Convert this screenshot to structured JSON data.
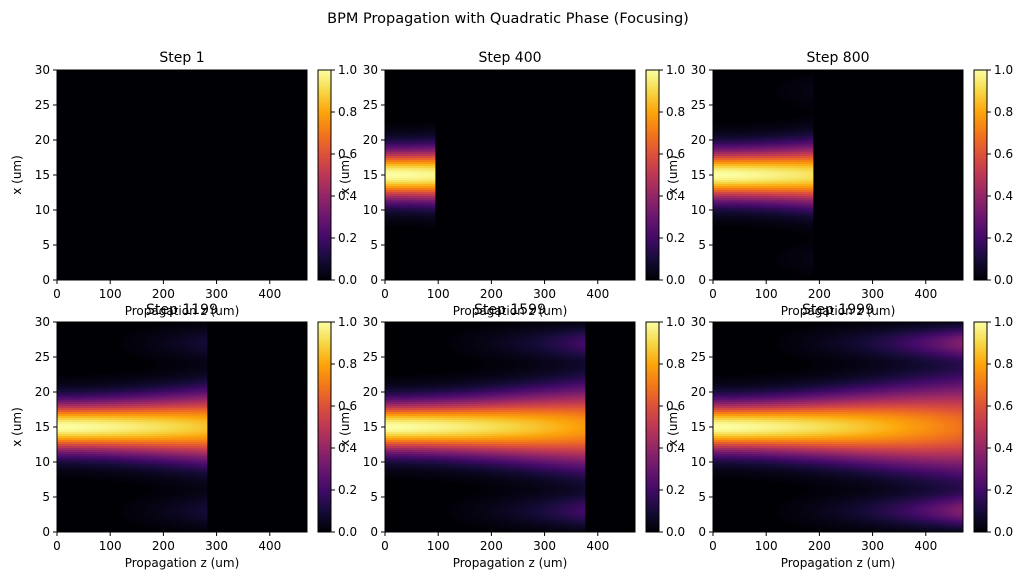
{
  "figure": {
    "title": "BPM Propagation with Quadratic Phase (Focusing)",
    "colormap": "inferno"
  },
  "chart_data": [
    {
      "type": "heatmap",
      "title": "Step 1",
      "xlabel": "Propagation z (um)",
      "ylabel": "x (um)",
      "xlim": [
        0,
        470
      ],
      "ylim": [
        0,
        30
      ],
      "xticks": [
        "0",
        "100",
        "200",
        "300",
        "400"
      ],
      "yticks": [
        "0",
        "5",
        "10",
        "15",
        "20",
        "25",
        "30"
      ],
      "colorbar": {
        "range": [
          0,
          1
        ],
        "ticks": [
          "0.0",
          "0.2",
          "0.4",
          "0.6",
          "0.8",
          "1.0"
        ]
      },
      "front_z": 0,
      "beam_center_x": 15
    },
    {
      "type": "heatmap",
      "title": "Step 400",
      "xlabel": "Propagation z (um)",
      "ylabel": "x (um)",
      "xlim": [
        0,
        470
      ],
      "ylim": [
        0,
        30
      ],
      "xticks": [
        "0",
        "100",
        "200",
        "300",
        "400"
      ],
      "yticks": [
        "0",
        "5",
        "10",
        "15",
        "20",
        "25",
        "30"
      ],
      "colorbar": {
        "range": [
          0,
          1
        ],
        "ticks": [
          "0.0",
          "0.2",
          "0.4",
          "0.6",
          "0.8",
          "1.0"
        ]
      },
      "front_z": 94,
      "beam_center_x": 15
    },
    {
      "type": "heatmap",
      "title": "Step 800",
      "xlabel": "Propagation z (um)",
      "ylabel": "x (um)",
      "xlim": [
        0,
        470
      ],
      "ylim": [
        0,
        30
      ],
      "xticks": [
        "0",
        "100",
        "200",
        "300",
        "400"
      ],
      "yticks": [
        "0",
        "5",
        "10",
        "15",
        "20",
        "25",
        "30"
      ],
      "colorbar": {
        "range": [
          0,
          1
        ],
        "ticks": [
          "0.0",
          "0.2",
          "0.4",
          "0.6",
          "0.8",
          "1.0"
        ]
      },
      "front_z": 188,
      "beam_center_x": 15
    },
    {
      "type": "heatmap",
      "title": "Step 1199",
      "xlabel": "Propagation z (um)",
      "ylabel": "x (um)",
      "xlim": [
        0,
        470
      ],
      "ylim": [
        0,
        30
      ],
      "xticks": [
        "0",
        "100",
        "200",
        "300",
        "400"
      ],
      "yticks": [
        "0",
        "5",
        "10",
        "15",
        "20",
        "25",
        "30"
      ],
      "colorbar": {
        "range": [
          0,
          1
        ],
        "ticks": [
          "0.0",
          "0.2",
          "0.4",
          "0.6",
          "0.8",
          "1.0"
        ]
      },
      "front_z": 282,
      "beam_center_x": 15
    },
    {
      "type": "heatmap",
      "title": "Step 1599",
      "xlabel": "Propagation z (um)",
      "ylabel": "x (um)",
      "xlim": [
        0,
        470
      ],
      "ylim": [
        0,
        30
      ],
      "xticks": [
        "0",
        "100",
        "200",
        "300",
        "400"
      ],
      "yticks": [
        "0",
        "5",
        "10",
        "15",
        "20",
        "25",
        "30"
      ],
      "colorbar": {
        "range": [
          0,
          1
        ],
        "ticks": [
          "0.0",
          "0.2",
          "0.4",
          "0.6",
          "0.8",
          "1.0"
        ]
      },
      "front_z": 376,
      "beam_center_x": 15
    },
    {
      "type": "heatmap",
      "title": "Step 1999",
      "xlabel": "Propagation z (um)",
      "ylabel": "x (um)",
      "xlim": [
        0,
        470
      ],
      "ylim": [
        0,
        30
      ],
      "xticks": [
        "0",
        "100",
        "200",
        "300",
        "400"
      ],
      "yticks": [
        "0",
        "5",
        "10",
        "15",
        "20",
        "25",
        "30"
      ],
      "colorbar": {
        "range": [
          0,
          1
        ],
        "ticks": [
          "0.0",
          "0.2",
          "0.4",
          "0.6",
          "0.8",
          "1.0"
        ]
      },
      "front_z": 470,
      "beam_center_x": 15
    }
  ]
}
